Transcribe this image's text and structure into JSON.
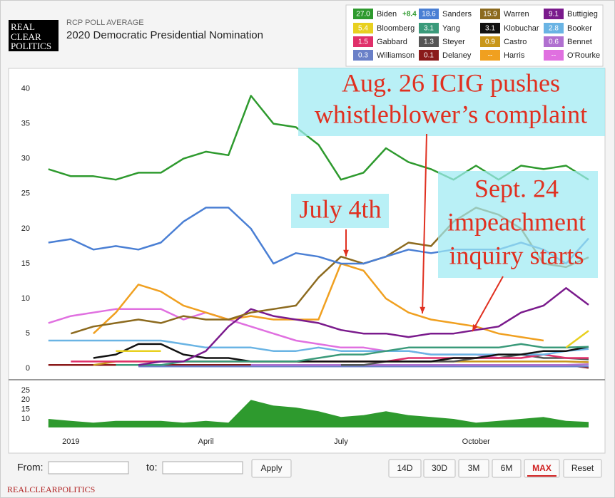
{
  "header": {
    "logo": [
      "REAL",
      "CLEAR",
      "POLITICS"
    ]
  },
  "chart_data": [
    {
      "type": "line",
      "subtitle": "RCP POLL AVERAGE",
      "title": "2020 Democratic Presidential Nomination",
      "x": [
        -0.5,
        0,
        0.5,
        1,
        1.5,
        2,
        2.5,
        3,
        3.5,
        4,
        4.5,
        5,
        5.5,
        6,
        6.5,
        7,
        7.5,
        8,
        8.5,
        9,
        9.5,
        10,
        10.5,
        11,
        11.5
      ],
      "xlim": [
        -0.75,
        11.5
      ],
      "ylim": [
        -1.3,
        42.5
      ],
      "yticks": [
        0,
        5,
        10,
        15,
        20,
        25,
        30,
        35,
        40
      ],
      "grid": false,
      "series": [
        {
          "name": "Biden",
          "color": "#2e9a2e",
          "legend_label": "27.0",
          "spread_label": "+8.4",
          "values": [
            28.5,
            27.5,
            27.5,
            27,
            28,
            28,
            30,
            31,
            30.5,
            39,
            35,
            34.5,
            32,
            27,
            28,
            31.5,
            29.5,
            28.5,
            27,
            29,
            27,
            29,
            28.5,
            29,
            27
          ]
        },
        {
          "name": "Sanders",
          "color": "#4a7fd4",
          "legend_label": "18.6",
          "values": [
            18,
            18.5,
            17,
            17.5,
            17,
            18,
            21,
            23,
            23,
            20,
            15,
            16.5,
            16,
            15,
            15,
            16,
            17,
            16.5,
            17,
            17,
            17,
            18,
            17,
            15,
            18.6
          ]
        },
        {
          "name": "Warren",
          "color": "#8c6a1e",
          "legend_label": "15.9",
          "values": [
            null,
            5,
            6,
            6.5,
            7,
            6.5,
            7.5,
            7,
            7,
            8,
            8.5,
            9,
            13,
            16,
            15,
            16,
            18,
            17.5,
            21,
            23,
            22,
            20,
            15,
            14.5,
            15.9
          ]
        },
        {
          "name": "Buttigieg",
          "color": "#7a1a8c",
          "legend_label": "9.1",
          "values": [
            null,
            null,
            null,
            null,
            0.5,
            1,
            1,
            2.5,
            6,
            8.5,
            7.5,
            7,
            6.5,
            5.5,
            5,
            5,
            4.5,
            5,
            5,
            5.5,
            6,
            8,
            9,
            11.5,
            9.1
          ]
        },
        {
          "name": "Bloomberg",
          "color": "#e8d020",
          "legend_label": "5.4",
          "values": [
            null,
            null,
            null,
            2.5,
            2.5,
            2.5,
            null,
            null,
            null,
            null,
            null,
            null,
            null,
            null,
            null,
            null,
            null,
            null,
            null,
            null,
            null,
            null,
            null,
            3,
            5.4
          ]
        },
        {
          "name": "Yang",
          "color": "#3a9a7a",
          "legend_label": "3.1",
          "values": [
            null,
            null,
            null,
            0.5,
            0.5,
            0.5,
            1,
            1,
            1,
            1,
            1,
            1,
            1.5,
            2,
            2,
            2.5,
            3,
            3,
            3,
            3,
            3,
            3.5,
            3,
            3,
            3.1
          ]
        },
        {
          "name": "Klobuchar",
          "color": "#111111",
          "legend_label": "3.1",
          "values": [
            null,
            null,
            1.5,
            2,
            3.5,
            3.5,
            2,
            1.5,
            1.5,
            1,
            1,
            1,
            1,
            1,
            1,
            1,
            1,
            1,
            1.5,
            1.5,
            2,
            2,
            2.5,
            2.5,
            3.1
          ]
        },
        {
          "name": "Booker",
          "color": "#6ab4e4",
          "legend_label": "2.8",
          "values": [
            4,
            4,
            4,
            4,
            4,
            4,
            3.5,
            3,
            3,
            3,
            2.5,
            2.5,
            3,
            2.5,
            2.5,
            2.5,
            2.5,
            2,
            2,
            2,
            2,
            2,
            2,
            2.5,
            2.8
          ]
        },
        {
          "name": "Gabbard",
          "color": "#e0306a",
          "legend_label": "1.5",
          "values": [
            null,
            1,
            1,
            1,
            1,
            1,
            1,
            1,
            1,
            1,
            1,
            1,
            1,
            1,
            1,
            1,
            1.5,
            1.5,
            1.5,
            1.5,
            1.5,
            1.5,
            2,
            1.5,
            1.5
          ]
        },
        {
          "name": "Steyer",
          "color": "#555555",
          "legend_label": "1.3",
          "values": [
            null,
            null,
            null,
            null,
            null,
            null,
            null,
            null,
            null,
            null,
            null,
            null,
            null,
            0.5,
            0.5,
            1,
            1,
            1,
            1,
            1.5,
            1.5,
            2,
            1.5,
            1.5,
            1.3
          ]
        },
        {
          "name": "Castro",
          "color": "#c8961a",
          "legend_label": "0.9",
          "values": [
            null,
            null,
            0.5,
            1,
            1,
            1,
            1,
            1,
            1,
            1,
            1,
            1,
            1,
            1,
            1,
            1,
            1,
            1,
            1,
            1,
            1,
            1,
            1,
            1,
            0.9
          ]
        },
        {
          "name": "Bennet",
          "color": "#b070d0",
          "legend_label": "0.6",
          "values": [
            null,
            null,
            null,
            null,
            null,
            null,
            null,
            null,
            null,
            0.5,
            0.5,
            0.5,
            0.5,
            0.5,
            0.5,
            0.5,
            0.5,
            0.5,
            0.5,
            0.5,
            0.5,
            0.5,
            0.5,
            0.5,
            0.6
          ]
        },
        {
          "name": "Williamson",
          "color": "#6a80c8",
          "legend_label": "0.3",
          "values": [
            null,
            null,
            null,
            null,
            0.3,
            0.3,
            0.3,
            0.3,
            0.3,
            0.3,
            0.3,
            0.3,
            0.3,
            0.3,
            0.3,
            0.3,
            0.3,
            0.3,
            0.3,
            0.3,
            0.3,
            0.3,
            0.3,
            0.3,
            0.3
          ]
        },
        {
          "name": "Delaney",
          "color": "#8a1a1a",
          "legend_label": "0.1",
          "values": [
            0.5,
            0.5,
            0.5,
            0.5,
            0.5,
            0.5,
            0.5,
            0.5,
            0.5,
            0.5,
            0.5,
            0.5,
            0.5,
            0.5,
            0.5,
            0.5,
            0.5,
            0.5,
            0.5,
            0.5,
            0.5,
            0.5,
            0.5,
            0.5,
            0.1
          ]
        },
        {
          "name": "Harris",
          "color": "#f0a020",
          "legend_label": "--",
          "values": [
            null,
            null,
            5,
            8,
            12,
            11,
            9,
            8,
            7,
            7.5,
            7,
            7,
            7,
            15,
            14,
            10,
            8,
            7,
            6.5,
            6,
            5,
            4.5,
            4,
            null,
            null
          ]
        },
        {
          "name": "O'Rourke",
          "color": "#e070e0",
          "legend_label": "--",
          "values": [
            6.5,
            7.5,
            8,
            8.5,
            8.5,
            8.5,
            7,
            8,
            7,
            6,
            5,
            4,
            3.5,
            3,
            3,
            2.5,
            2.5,
            2,
            2,
            2,
            1.5,
            null,
            null,
            null,
            null
          ]
        }
      ],
      "annotations": [
        {
          "lines": [
            "Aug. 26 ICIG pushes",
            "whistleblower’s complaint"
          ]
        },
        {
          "lines": [
            "July 4th"
          ]
        },
        {
          "lines": [
            "Sept. 24",
            "impeachment",
            "inquiry starts"
          ]
        }
      ]
    },
    {
      "type": "area",
      "color": "#2e9a2e",
      "x": [
        -0.5,
        0,
        0.5,
        1,
        1.5,
        2,
        2.5,
        3,
        3.5,
        4,
        4.5,
        5,
        5.5,
        6,
        6.5,
        7,
        7.5,
        8,
        8.5,
        9,
        9.5,
        10,
        10.5,
        11,
        11.5
      ],
      "values": [
        10,
        9,
        8,
        9,
        9,
        9,
        8,
        9,
        8,
        20,
        17,
        16,
        14,
        11,
        12,
        14,
        12,
        11,
        10,
        8,
        9,
        10,
        11,
        9,
        8.4
      ],
      "xlim": [
        -0.75,
        11.5
      ],
      "ylim": [
        5.5,
        28
      ],
      "yticks": [
        10,
        15,
        20,
        25
      ],
      "xticks": [
        {
          "value": 0,
          "label": "2019"
        },
        {
          "value": 3,
          "label": "April"
        },
        {
          "value": 6,
          "label": "July"
        },
        {
          "value": 9,
          "label": "October"
        }
      ]
    }
  ],
  "controls": {
    "from": "From:",
    "to": "to:",
    "apply": "Apply",
    "ranges": [
      "14D",
      "30D",
      "3M",
      "6M",
      "MAX"
    ],
    "reset": "Reset"
  },
  "footer": "REALCLEARPOLITICS"
}
